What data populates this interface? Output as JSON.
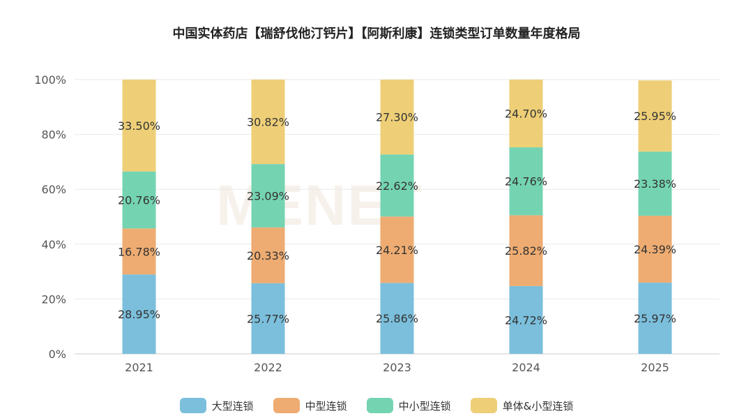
{
  "watermark": "MENET",
  "chart_data": {
    "type": "bar",
    "stacked": true,
    "title": "中国实体药店【瑞舒伐他汀钙片】【阿斯利康】连锁类型订单数量年度格局",
    "categories": [
      "2021",
      "2022",
      "2023",
      "2024",
      "2025"
    ],
    "ylim": [
      0,
      100
    ],
    "yticks": [
      "0%",
      "20%",
      "40%",
      "60%",
      "80%",
      "100%"
    ],
    "grid": true,
    "legend_position": "bottom",
    "series": [
      {
        "name": "大型连锁",
        "color": "#7bbfdc",
        "values": [
          28.95,
          25.77,
          25.86,
          24.72,
          25.97
        ],
        "labels": [
          "28.95%",
          "25.77%",
          "25.86%",
          "24.72%",
          "25.97%"
        ]
      },
      {
        "name": "中型连锁",
        "color": "#eeac72",
        "values": [
          16.78,
          20.33,
          24.21,
          25.82,
          24.39
        ],
        "labels": [
          "16.78%",
          "20.33%",
          "24.21%",
          "25.82%",
          "24.39%"
        ]
      },
      {
        "name": "中小型连锁",
        "color": "#74d4b2",
        "values": [
          20.76,
          23.09,
          22.62,
          24.76,
          23.38
        ],
        "labels": [
          "20.76%",
          "23.09%",
          "22.62%",
          "24.76%",
          "23.38%"
        ]
      },
      {
        "name": "单体&小型连锁",
        "color": "#eecf77",
        "values": [
          33.5,
          30.82,
          27.3,
          24.7,
          25.95
        ],
        "labels": [
          "33.50%",
          "30.82%",
          "27.30%",
          "24.70%",
          "25.95%"
        ]
      }
    ]
  }
}
